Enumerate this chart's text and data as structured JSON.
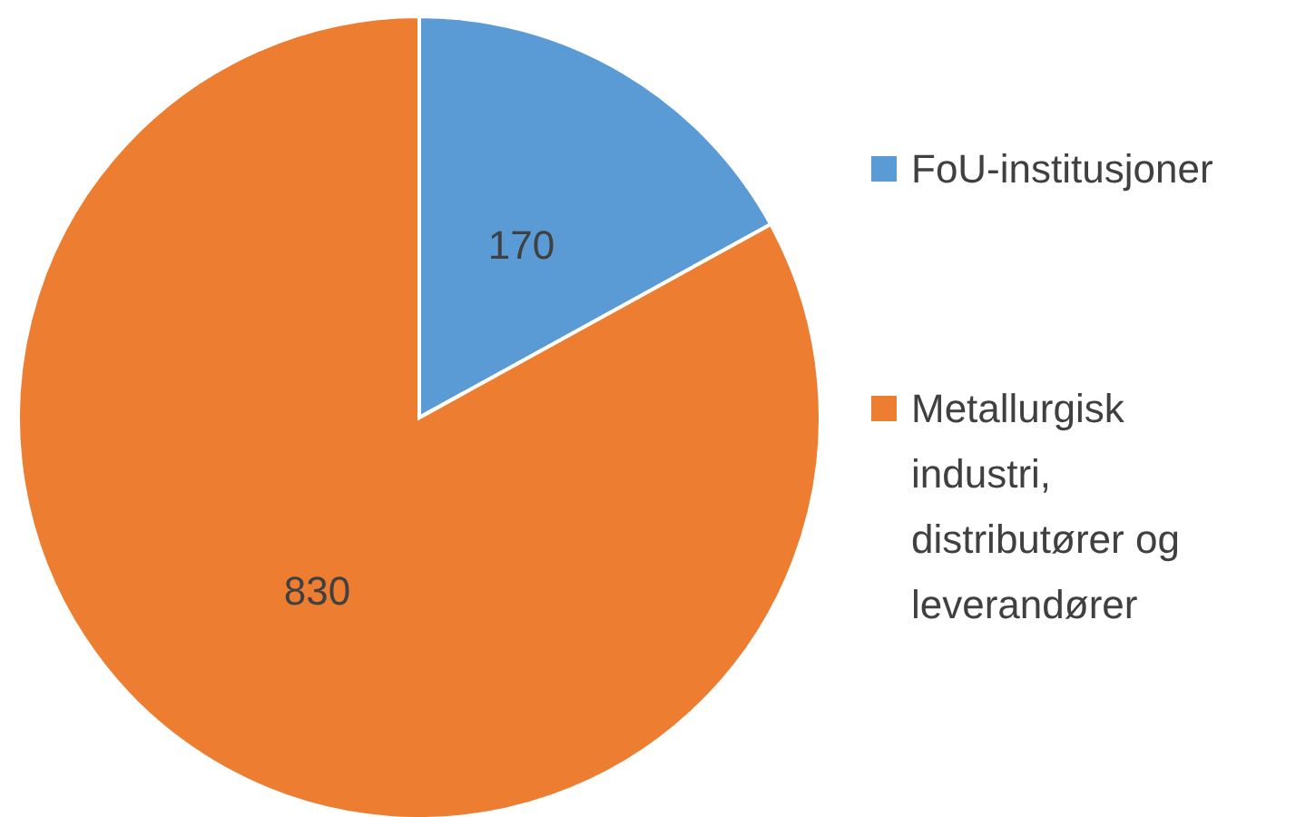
{
  "chart_data": {
    "type": "pie",
    "categories": [
      "FoU-institusjoner",
      "Metallurgisk industri, distributører og leverandører"
    ],
    "values": [
      170,
      830
    ],
    "colors": [
      "#5b9bd5",
      "#ed7d31"
    ],
    "data_labels": true,
    "legend": "right"
  }
}
